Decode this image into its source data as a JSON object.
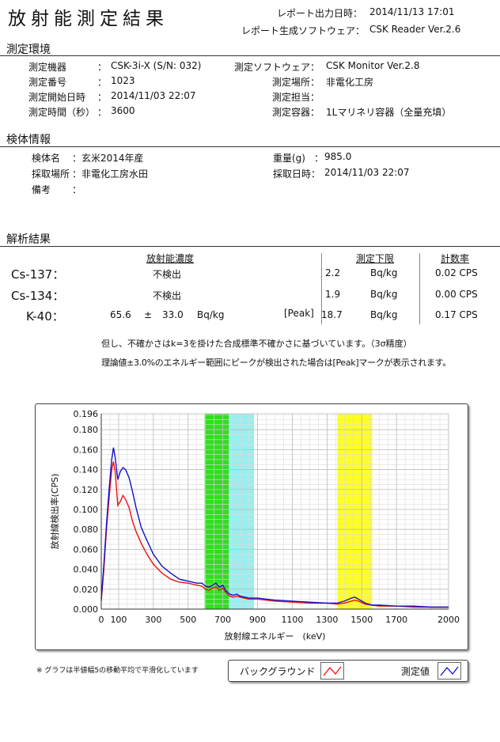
{
  "header": {
    "title": "放射能測定結果",
    "report_time_label": "レポート出力日時：",
    "report_time": "2014/11/13 17:01",
    "software_label": "レポート生成ソフトウェア：",
    "software": "CSK Reader Ver.2.6"
  },
  "env": {
    "heading": "測定環境",
    "device_label": "測定機器",
    "device_value": "CSK-3i-X (S/N: 032)",
    "number_label": "測定番号",
    "number_value": "1023",
    "start_label": "測定開始日時",
    "start_value": "2014/11/03 22:07",
    "time_label": "測定時間（秒）",
    "time_value": "3600",
    "sw_label": "測定ソフトウェア：",
    "sw_value": "CSK Monitor Ver.2.8",
    "place_label": "測定場所：",
    "place_value": "非電化工房",
    "person_label": "測定担当：",
    "person_value": "",
    "container_label": "測定容器：",
    "container_value": "1Lマリネリ容器（全量充填）"
  },
  "sample": {
    "heading": "検体情報",
    "name_label": "検体名",
    "name_value": "玄米2014年産",
    "place_label": "採取場所",
    "place_value": "非電化工房水田",
    "note_label": "備考",
    "note_value": "",
    "weight_label": "重量(g)",
    "weight_value": "985.0",
    "date_label": "採取日時：",
    "date_value": "2014/11/03 22:07"
  },
  "analysis": {
    "heading": "解析結果",
    "col_conc": "放射能濃度",
    "col_limit": "測定下限",
    "col_rate": "計数率",
    "rows": [
      {
        "nuclide": "Cs-137：",
        "conc": "不検出",
        "pm": "",
        "err": "",
        "unit": "",
        "peak": "",
        "limit": "2.2",
        "limit_unit": "Bq/kg",
        "rate": "0.02 CPS"
      },
      {
        "nuclide": "Cs-134：",
        "conc": "不検出",
        "pm": "",
        "err": "",
        "unit": "",
        "peak": "",
        "limit": "1.9",
        "limit_unit": "Bq/kg",
        "rate": "0.00 CPS"
      },
      {
        "nuclide": "K-40：",
        "conc": "65.6",
        "pm": "±",
        "err": "33.0",
        "unit": "Bq/kg",
        "peak": "[Peak]",
        "limit": "18.7",
        "limit_unit": "Bq/kg",
        "rate": "0.17 CPS"
      }
    ],
    "note1": "但し、不確かさはk=3を掛けた合成標準不確かさに基づいています。（3σ精度）",
    "note2": "理論値±3.0%のエネルギー範囲にピークが検出された場合は[Peak]マークが表示されます。"
  },
  "chart_footnote": "※ グラフは半値幅5の移動平均で平滑化しています",
  "colors": {
    "background": "#ff2020",
    "measured": "#1010cc",
    "green_band": "#33dd22",
    "cyan_band": "#99eeee",
    "yellow_band": "#ffff22"
  },
  "chart_data": {
    "type": "line",
    "xlabel": "放射線エネルギー　(keV)",
    "ylabel": "放射線検出率(CPS)",
    "xlim": [
      0,
      2000
    ],
    "ylim": [
      0,
      0.196
    ],
    "xticks": [
      0,
      100,
      300,
      500,
      700,
      900,
      1100,
      1300,
      1500,
      1700,
      2000
    ],
    "yticks": [
      0.0,
      0.02,
      0.04,
      0.06,
      0.08,
      0.1,
      0.12,
      0.14,
      0.16,
      0.18,
      0.196
    ],
    "ytick_labels": [
      "0.000",
      "0.020",
      "0.040",
      "0.060",
      "0.080",
      "0.100",
      "0.120",
      "0.140",
      "0.160",
      "0.180",
      "0.196"
    ],
    "grid": true,
    "bands": [
      {
        "x0": 595,
        "x1": 735,
        "color": "#33dd22"
      },
      {
        "x0": 735,
        "x1": 880,
        "color": "#99eeee"
      },
      {
        "x0": 1360,
        "x1": 1560,
        "color": "#ffff22"
      }
    ],
    "legend_position": "bottom-right",
    "series": [
      {
        "name": "バックグラウンド",
        "color": "#ee1111",
        "x": [
          0,
          15,
          30,
          45,
          60,
          70,
          80,
          95,
          110,
          125,
          140,
          160,
          180,
          200,
          230,
          260,
          300,
          350,
          400,
          450,
          500,
          550,
          580,
          600,
          620,
          640,
          660,
          680,
          700,
          720,
          740,
          760,
          780,
          800,
          850,
          900,
          1000,
          1100,
          1200,
          1300,
          1360,
          1400,
          1440,
          1460,
          1480,
          1520,
          1560,
          1600,
          1700,
          1800,
          1900,
          2000
        ],
        "y": [
          0.008,
          0.04,
          0.08,
          0.112,
          0.14,
          0.148,
          0.138,
          0.104,
          0.108,
          0.114,
          0.11,
          0.102,
          0.088,
          0.078,
          0.066,
          0.056,
          0.045,
          0.036,
          0.03,
          0.027,
          0.026,
          0.024,
          0.023,
          0.02,
          0.019,
          0.021,
          0.022,
          0.019,
          0.021,
          0.016,
          0.013,
          0.012,
          0.013,
          0.012,
          0.01,
          0.01,
          0.008,
          0.007,
          0.006,
          0.006,
          0.005,
          0.006,
          0.008,
          0.009,
          0.008,
          0.005,
          0.004,
          0.003,
          0.003,
          0.002,
          0.002,
          0.002
        ]
      },
      {
        "name": "測定値",
        "color": "#1111cc",
        "x": [
          0,
          15,
          30,
          45,
          60,
          70,
          80,
          95,
          110,
          125,
          140,
          160,
          180,
          200,
          230,
          260,
          300,
          350,
          400,
          450,
          500,
          550,
          580,
          600,
          620,
          640,
          660,
          680,
          700,
          720,
          740,
          760,
          780,
          800,
          850,
          900,
          1000,
          1100,
          1200,
          1300,
          1360,
          1400,
          1440,
          1460,
          1480,
          1520,
          1560,
          1600,
          1700,
          1800,
          1900,
          2000
        ],
        "y": [
          0.01,
          0.045,
          0.085,
          0.12,
          0.15,
          0.162,
          0.152,
          0.13,
          0.138,
          0.142,
          0.14,
          0.132,
          0.118,
          0.102,
          0.082,
          0.07,
          0.055,
          0.043,
          0.036,
          0.03,
          0.028,
          0.026,
          0.026,
          0.023,
          0.022,
          0.024,
          0.026,
          0.022,
          0.024,
          0.018,
          0.015,
          0.014,
          0.015,
          0.013,
          0.011,
          0.011,
          0.009,
          0.008,
          0.007,
          0.006,
          0.006,
          0.008,
          0.011,
          0.012,
          0.01,
          0.006,
          0.004,
          0.004,
          0.003,
          0.003,
          0.002,
          0.002
        ]
      }
    ]
  }
}
